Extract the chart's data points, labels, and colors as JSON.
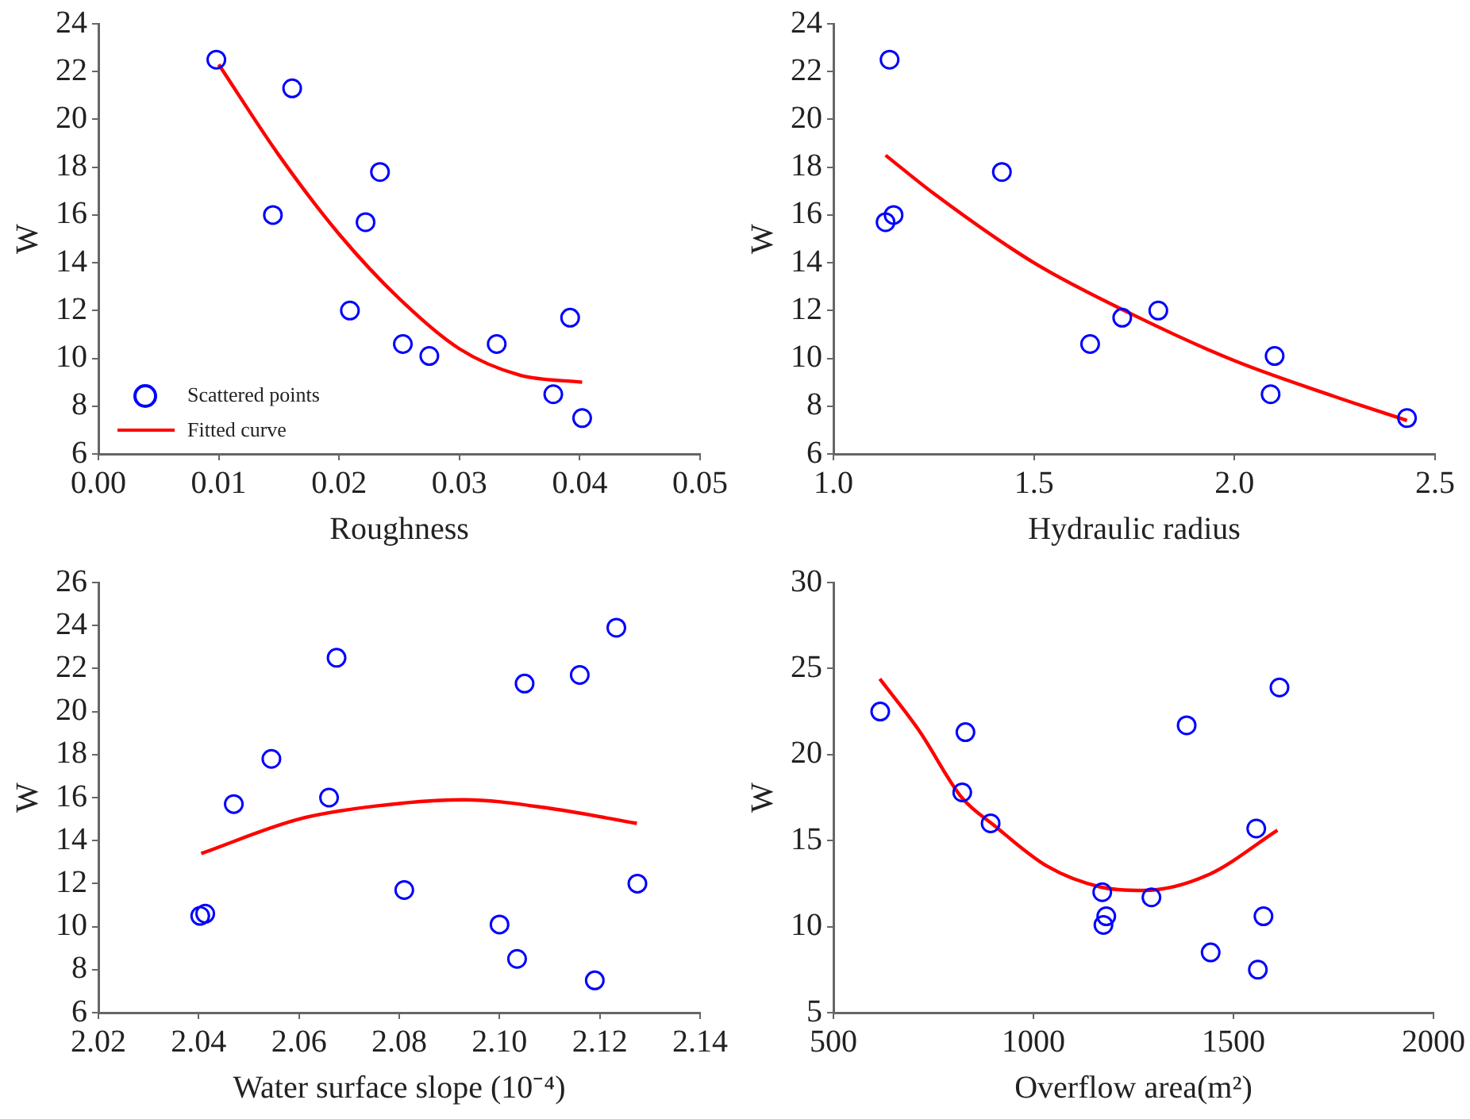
{
  "chart_data": [
    {
      "type": "scatter",
      "xlabel": "Roughness",
      "ylabel": "W",
      "legend": "bottom left",
      "grid": false,
      "xlim": [
        0,
        0.05
      ],
      "xticks": [
        {
          "value": 0,
          "label": "0.00"
        },
        0.01,
        0.02,
        0.03,
        0.04,
        0.05
      ],
      "ylim": [
        6,
        24
      ],
      "yticks": [
        6,
        8,
        10,
        12,
        14,
        16,
        18,
        20,
        22,
        24
      ],
      "series": [
        {
          "name": "Scattered points",
          "marker": "circle",
          "color": "#0000ff",
          "x": [
            0.0098,
            0.0161,
            0.0145,
            0.0234,
            0.0222,
            0.0209,
            0.0253,
            0.0275,
            0.0331,
            0.0392,
            0.0378,
            0.0402
          ],
          "values": [
            22.5,
            21.3,
            16.0,
            17.8,
            15.7,
            12.0,
            10.6,
            10.1,
            10.6,
            11.7,
            8.5,
            7.5
          ]
        },
        {
          "name": "Fitted curve",
          "type": "line",
          "marker": "none",
          "color": "#ff0000",
          "x": [
            0.01,
            0.015,
            0.02,
            0.025,
            0.03,
            0.035,
            0.0402
          ],
          "values": [
            22.3,
            18.5,
            15.2,
            12.5,
            10.4,
            9.3,
            9.0
          ]
        }
      ]
    },
    {
      "type": "scatter",
      "xlabel": "Hydraulic radius",
      "ylabel": "W",
      "grid": false,
      "xlim": [
        1.0,
        2.5
      ],
      "xticks": [
        {
          "value": 1.0,
          "label": "1.0"
        },
        1.5,
        {
          "value": 2.0,
          "label": "2.0"
        },
        2.5
      ],
      "ylim": [
        6,
        24
      ],
      "yticks": [
        6,
        8,
        10,
        12,
        14,
        16,
        18,
        20,
        22,
        24
      ],
      "series": [
        {
          "marker": "circle",
          "color": "#0000ff",
          "x": [
            1.14,
            1.13,
            1.15,
            1.42,
            1.64,
            1.72,
            1.81,
            2.1,
            2.09,
            2.43
          ],
          "values": [
            22.5,
            15.7,
            16.0,
            17.8,
            10.6,
            11.7,
            12.0,
            10.1,
            8.5,
            7.5
          ]
        },
        {
          "type": "line",
          "marker": "none",
          "color": "#ff0000",
          "x": [
            1.13,
            1.25,
            1.5,
            1.75,
            2.0,
            2.25,
            2.43
          ],
          "values": [
            18.5,
            16.9,
            14.0,
            11.8,
            9.9,
            8.4,
            7.4
          ]
        }
      ]
    },
    {
      "type": "scatter",
      "xlabel": "Water surface slope (10⁻⁴)",
      "ylabel": "W",
      "grid": false,
      "xlim": [
        2.02,
        2.14
      ],
      "xticks": [
        2.02,
        2.04,
        2.06,
        2.08,
        {
          "value": 2.1,
          "label": "2.10"
        },
        2.12,
        2.14
      ],
      "ylim": [
        6,
        26
      ],
      "yticks": [
        6,
        8,
        10,
        12,
        14,
        16,
        18,
        20,
        22,
        24,
        26
      ],
      "series": [
        {
          "marker": "circle",
          "color": "#0000ff",
          "x": [
            2.0403,
            2.0413,
            2.047,
            2.0545,
            2.066,
            2.0675,
            2.081,
            2.1,
            2.1035,
            2.105,
            2.116,
            2.119,
            2.1233,
            2.1275
          ],
          "values": [
            10.5,
            10.6,
            15.7,
            17.8,
            16.0,
            22.5,
            11.7,
            10.1,
            8.5,
            21.3,
            21.7,
            7.5,
            23.9,
            12.0
          ]
        },
        {
          "type": "line",
          "marker": "none",
          "color": "#ff0000",
          "x": [
            2.0405,
            2.06,
            2.075,
            2.093,
            2.11,
            2.1274
          ],
          "values": [
            13.4,
            15.0,
            15.6,
            15.9,
            15.5,
            14.8
          ]
        }
      ]
    },
    {
      "type": "scatter",
      "xlabel": "Overflow area(m²)",
      "ylabel": "W",
      "grid": false,
      "xlim": [
        500,
        2000
      ],
      "xticks": [
        500,
        1000,
        1500,
        2000
      ],
      "ylim": [
        5,
        30
      ],
      "yticks": [
        5,
        10,
        15,
        20,
        25,
        30
      ],
      "series": [
        {
          "marker": "circle",
          "color": "#0000ff",
          "x": [
            617,
            830,
            822,
            893,
            1172,
            1182,
            1175,
            1295,
            1383,
            1443,
            1557,
            1575,
            1561,
            1615
          ],
          "values": [
            22.5,
            21.3,
            17.8,
            16.0,
            12.0,
            10.6,
            10.1,
            11.7,
            21.7,
            8.5,
            15.7,
            10.6,
            7.5,
            23.9
          ]
        },
        {
          "type": "line",
          "marker": "none",
          "color": "#ff0000",
          "x": [
            616,
            714,
            821,
            901,
            1035,
            1168,
            1275,
            1436,
            1610
          ],
          "values": [
            24.4,
            21.4,
            17.5,
            15.9,
            13.5,
            12.3,
            12.1,
            13.0,
            15.6
          ]
        }
      ]
    }
  ]
}
